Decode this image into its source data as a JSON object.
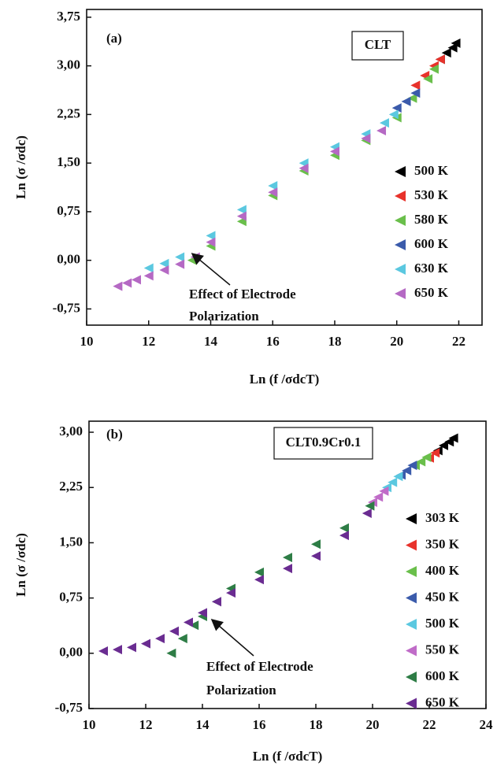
{
  "chart_data": [
    {
      "type": "scatter",
      "panel": "(a)",
      "sample": "CLT",
      "xlabel": "Ln (f /σdcT)",
      "ylabel": "Ln (σ /σdc)",
      "annotation": [
        "Effect of Electrode",
        "Polarization"
      ],
      "xlim": [
        10,
        22.75
      ],
      "ylim": [
        -1.0,
        3.87
      ],
      "xticks": [
        10,
        12,
        14,
        16,
        18,
        20,
        22
      ],
      "yticks": [
        {
          "value": -0.75,
          "label": "-0,75"
        },
        {
          "value": 0,
          "label": "0,00"
        },
        {
          "value": 0.75,
          "label": "0,75"
        },
        {
          "value": 1.5,
          "label": "1,50"
        },
        {
          "value": 2.25,
          "label": "2,25"
        },
        {
          "value": 3.0,
          "label": "3,00"
        },
        {
          "value": 3.75,
          "label": "3,75"
        }
      ],
      "legend": "right",
      "series": [
        {
          "name": "500 K",
          "color": "#000000",
          "x": [
            21.4,
            21.6,
            21.8,
            21.9
          ],
          "values": [
            3.1,
            3.2,
            3.28,
            3.35
          ]
        },
        {
          "name": "530 K",
          "color": "#e8322b",
          "x": [
            20.6,
            20.9,
            21.2,
            21.4
          ],
          "values": [
            2.7,
            2.85,
            3.0,
            3.1
          ]
        },
        {
          "name": "580 K",
          "color": "#6abf4b",
          "x": [
            13.4,
            14,
            15,
            16,
            17,
            18,
            19,
            20,
            20.5,
            21,
            21.2
          ],
          "values": [
            0.0,
            0.22,
            0.6,
            1.0,
            1.38,
            1.62,
            1.85,
            2.2,
            2.5,
            2.8,
            2.95
          ]
        },
        {
          "name": "600 K",
          "color": "#3b5bab",
          "x": [
            20.0,
            20.3,
            20.6
          ],
          "values": [
            2.35,
            2.45,
            2.58
          ]
        },
        {
          "name": "630 K",
          "color": "#5bc8e0",
          "x": [
            12,
            12.5,
            13,
            14,
            15,
            16,
            17,
            18,
            19,
            19.6,
            19.9
          ],
          "values": [
            -0.12,
            -0.05,
            0.05,
            0.38,
            0.78,
            1.15,
            1.5,
            1.75,
            1.95,
            2.12,
            2.25
          ]
        },
        {
          "name": "650 K",
          "color": "#b569c4",
          "x": [
            11,
            11.3,
            11.6,
            12,
            12.5,
            13,
            13.5,
            14,
            15,
            16,
            17,
            18,
            19,
            19.5
          ],
          "values": [
            -0.4,
            -0.35,
            -0.3,
            -0.24,
            -0.15,
            -0.06,
            0.05,
            0.28,
            0.68,
            1.05,
            1.42,
            1.68,
            1.88,
            2.0
          ]
        }
      ]
    },
    {
      "type": "scatter",
      "panel": "(b)",
      "sample": "CLT0.9Cr0.1",
      "xlabel": "Ln (f /σdcT)",
      "ylabel": "Ln (σ /σdc)",
      "annotation": [
        "Effect of Electrode",
        "Polarization"
      ],
      "xlim": [
        10,
        24
      ],
      "ylim": [
        -0.75,
        3.15
      ],
      "xticks": [
        10,
        12,
        14,
        16,
        18,
        20,
        22,
        24
      ],
      "yticks": [
        {
          "value": -0.75,
          "label": "-0,75"
        },
        {
          "value": 0,
          "label": "0,00"
        },
        {
          "value": 0.75,
          "label": "0,75"
        },
        {
          "value": 1.5,
          "label": "1,50"
        },
        {
          "value": 2.25,
          "label": "2,25"
        },
        {
          "value": 3.0,
          "label": "3,00"
        }
      ],
      "legend": "right",
      "series": [
        {
          "name": "303 K",
          "color": "#000000",
          "x": [
            22.3,
            22.5,
            22.7,
            22.85
          ],
          "values": [
            2.75,
            2.82,
            2.87,
            2.92
          ]
        },
        {
          "name": "350 K",
          "color": "#e8322b",
          "x": [
            22,
            22.2
          ],
          "values": [
            2.65,
            2.72
          ]
        },
        {
          "name": "400 K",
          "color": "#6abf4b",
          "x": [
            21.5,
            21.7,
            21.9
          ],
          "values": [
            2.55,
            2.6,
            2.66
          ]
        },
        {
          "name": "450 K",
          "color": "#3b5bab",
          "x": [
            21,
            21.2,
            21.4
          ],
          "values": [
            2.42,
            2.48,
            2.55
          ]
        },
        {
          "name": "500 K",
          "color": "#5bc8e0",
          "x": [
            20.5,
            20.7,
            20.9
          ],
          "values": [
            2.25,
            2.32,
            2.4
          ]
        },
        {
          "name": "550 K",
          "color": "#c06cc8",
          "x": [
            20,
            20.2,
            20.4
          ],
          "values": [
            2.05,
            2.12,
            2.2
          ]
        },
        {
          "name": "600 K",
          "color": "#2e7d46",
          "x": [
            12.9,
            13.3,
            13.7,
            14,
            14.5,
            15,
            16,
            17,
            18,
            19,
            19.9
          ],
          "values": [
            0.0,
            0.2,
            0.38,
            0.5,
            0.7,
            0.88,
            1.1,
            1.3,
            1.48,
            1.7,
            2.0
          ]
        },
        {
          "name": "650 K",
          "color": "#6a2c91",
          "x": [
            10.5,
            11,
            11.5,
            12,
            12.5,
            13,
            13.5,
            14,
            14.5,
            15,
            16,
            17,
            18,
            19,
            19.8
          ],
          "values": [
            0.03,
            0.05,
            0.08,
            0.13,
            0.2,
            0.3,
            0.42,
            0.55,
            0.7,
            0.82,
            1.0,
            1.15,
            1.32,
            1.6,
            1.9
          ]
        }
      ]
    }
  ]
}
